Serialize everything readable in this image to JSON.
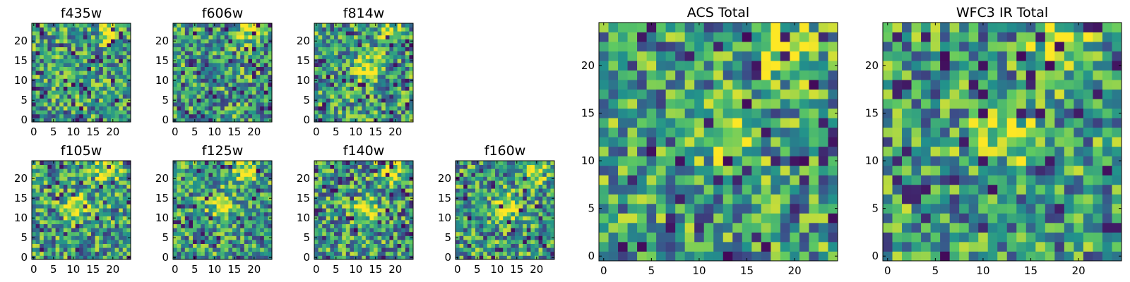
{
  "chart_data": [
    {
      "type": "heatmap",
      "title": "f435w",
      "grid_size": [
        25,
        25
      ],
      "colormap": "viridis",
      "xticks": [
        "0",
        "5",
        "10",
        "15",
        "20"
      ],
      "yticks": [
        "0",
        "5",
        "10",
        "15",
        "20"
      ],
      "xlim": [
        -0.5,
        24.5
      ],
      "ylim": [
        -0.5,
        24.5
      ],
      "bright_regions": [
        {
          "x": 19,
          "y": 23
        }
      ],
      "seed": 11
    },
    {
      "type": "heatmap",
      "title": "f606w",
      "grid_size": [
        25,
        25
      ],
      "colormap": "viridis",
      "xticks": [
        "0",
        "5",
        "10",
        "15",
        "20"
      ],
      "yticks": [
        "0",
        "5",
        "10",
        "15",
        "20"
      ],
      "xlim": [
        -0.5,
        24.5
      ],
      "ylim": [
        -0.5,
        24.5
      ],
      "bright_regions": [
        {
          "x": 19,
          "y": 23
        }
      ],
      "seed": 23
    },
    {
      "type": "heatmap",
      "title": "f814w",
      "grid_size": [
        25,
        25
      ],
      "colormap": "viridis",
      "xticks": [
        "0",
        "5",
        "10",
        "15",
        "20"
      ],
      "yticks": [
        "0",
        "5",
        "10",
        "15",
        "20"
      ],
      "xlim": [
        -0.5,
        24.5
      ],
      "ylim": [
        -0.5,
        24.5
      ],
      "bright_regions": [
        {
          "x": 19,
          "y": 22
        },
        {
          "x": 13,
          "y": 13
        }
      ],
      "seed": 37
    },
    {
      "type": "heatmap",
      "title": "f105w",
      "grid_size": [
        25,
        25
      ],
      "colormap": "viridis",
      "xticks": [
        "0",
        "5",
        "10",
        "15",
        "20"
      ],
      "yticks": [
        "0",
        "5",
        "10",
        "15",
        "20"
      ],
      "xlim": [
        -0.5,
        24.5
      ],
      "ylim": [
        -0.5,
        24.5
      ],
      "bright_regions": [
        {
          "x": 18,
          "y": 22
        },
        {
          "x": 11,
          "y": 13
        }
      ],
      "seed": 41
    },
    {
      "type": "heatmap",
      "title": "f125w",
      "grid_size": [
        25,
        25
      ],
      "colormap": "viridis",
      "xticks": [
        "0",
        "5",
        "10",
        "15",
        "20"
      ],
      "yticks": [
        "0",
        "5",
        "10",
        "15",
        "20"
      ],
      "xlim": [
        -0.5,
        24.5
      ],
      "ylim": [
        -0.5,
        24.5
      ],
      "bright_regions": [
        {
          "x": 12,
          "y": 13
        },
        {
          "x": 18,
          "y": 22
        }
      ],
      "seed": 53
    },
    {
      "type": "heatmap",
      "title": "f140w",
      "grid_size": [
        25,
        25
      ],
      "colormap": "viridis",
      "xticks": [
        "0",
        "5",
        "10",
        "15",
        "20"
      ],
      "yticks": [
        "0",
        "5",
        "10",
        "15",
        "20"
      ],
      "xlim": [
        -0.5,
        24.5
      ],
      "ylim": [
        -0.5,
        24.5
      ],
      "bright_regions": [
        {
          "x": 12,
          "y": 12
        },
        {
          "x": 19,
          "y": 22
        }
      ],
      "seed": 67
    },
    {
      "type": "heatmap",
      "title": "f160w",
      "grid_size": [
        25,
        25
      ],
      "colormap": "viridis",
      "xticks": [
        "0",
        "5",
        "10",
        "15",
        "20"
      ],
      "yticks": [
        "0",
        "5",
        "10",
        "15",
        "20"
      ],
      "xlim": [
        -0.5,
        24.5
      ],
      "ylim": [
        -0.5,
        24.5
      ],
      "bright_regions": [
        {
          "x": 12,
          "y": 13
        },
        {
          "x": 19,
          "y": 22
        }
      ],
      "seed": 79
    },
    {
      "type": "heatmap",
      "title": "ACS Total",
      "grid_size": [
        25,
        25
      ],
      "colormap": "viridis",
      "xticks": [
        "0",
        "5",
        "10",
        "15",
        "20"
      ],
      "yticks": [
        "0",
        "5",
        "10",
        "15",
        "20"
      ],
      "xlim": [
        -0.5,
        24.5
      ],
      "ylim": [
        -0.5,
        24.5
      ],
      "bright_regions": [
        {
          "x": 19,
          "y": 22
        },
        {
          "x": 13,
          "y": 13
        }
      ],
      "seed": 97
    },
    {
      "type": "heatmap",
      "title": "WFC3 IR Total",
      "grid_size": [
        25,
        25
      ],
      "colormap": "viridis",
      "xticks": [
        "0",
        "5",
        "10",
        "15",
        "20"
      ],
      "yticks": [
        "0",
        "5",
        "10",
        "15",
        "20"
      ],
      "xlim": [
        -0.5,
        24.5
      ],
      "ylim": [
        -0.5,
        24.5
      ],
      "bright_regions": [
        {
          "x": 12,
          "y": 13
        },
        {
          "x": 18,
          "y": 22
        }
      ],
      "seed": 101
    }
  ]
}
